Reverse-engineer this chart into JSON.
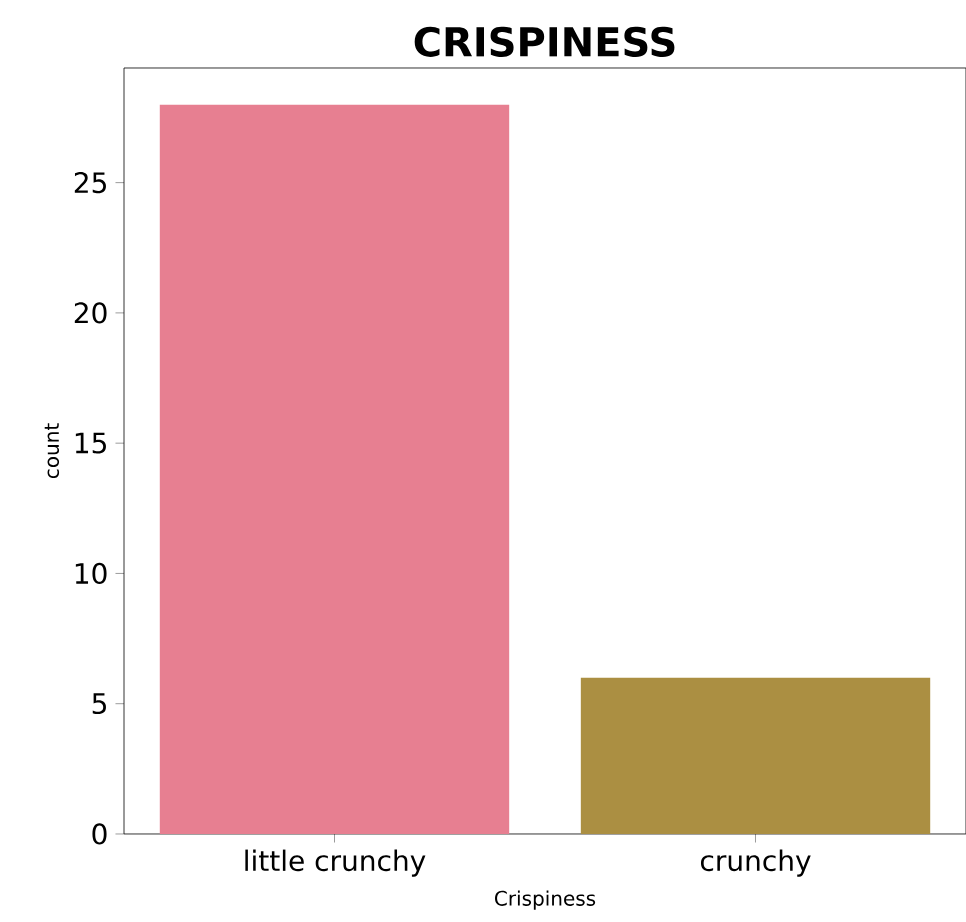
{
  "chart_data": {
    "type": "bar",
    "title": "CRISPINESS",
    "xlabel": "Crispiness",
    "ylabel": "count",
    "categories": [
      "little crunchy",
      "crunchy"
    ],
    "values": [
      28,
      6
    ],
    "colors": [
      "#e77f91",
      "#ab8f42"
    ],
    "ylim": [
      0,
      29.4
    ],
    "yticks": [
      0,
      5,
      10,
      15,
      20,
      25
    ]
  }
}
